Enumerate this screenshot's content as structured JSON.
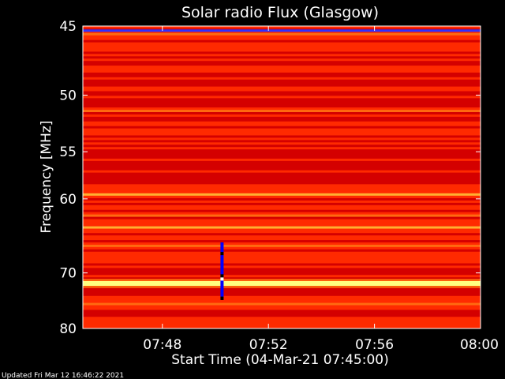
{
  "chart_data": {
    "type": "heatmap",
    "title": "Solar radio Flux (Glasgow)",
    "xlabel": "Start Time (04-Mar-21 07:45:00)",
    "ylabel": "Frequency [MHz]",
    "x_range": [
      "07:45:00",
      "08:00:00"
    ],
    "xticks": [
      "07:48",
      "07:52",
      "07:56",
      "08:00"
    ],
    "y_range": [
      45,
      80
    ],
    "yticks": [
      45,
      50,
      55,
      60,
      70,
      80
    ],
    "y_scale": "reciprocal",
    "colormap": [
      "#3a0000",
      "#8a0000",
      "#d40000",
      "#ff2a00",
      "#ff6a10",
      "#ffb030",
      "#ffff80"
    ],
    "bright_bands": [
      {
        "freq": 45.3,
        "intensity": 0.2,
        "color": "#3030ff"
      },
      {
        "freq": 59.5,
        "intensity": 0.78
      },
      {
        "freq": 63.5,
        "intensity": 0.85
      },
      {
        "freq": 71.7,
        "intensity": 1.0
      }
    ],
    "interference_column": {
      "time": "07:50:15",
      "freq_range": [
        65.5,
        74.5
      ],
      "colors": [
        "#0000ff",
        "#000000",
        "#ffffff"
      ]
    },
    "grid": false
  },
  "footer": {
    "updated": "Updated Fri Mar 12 16:46:22 2021"
  }
}
